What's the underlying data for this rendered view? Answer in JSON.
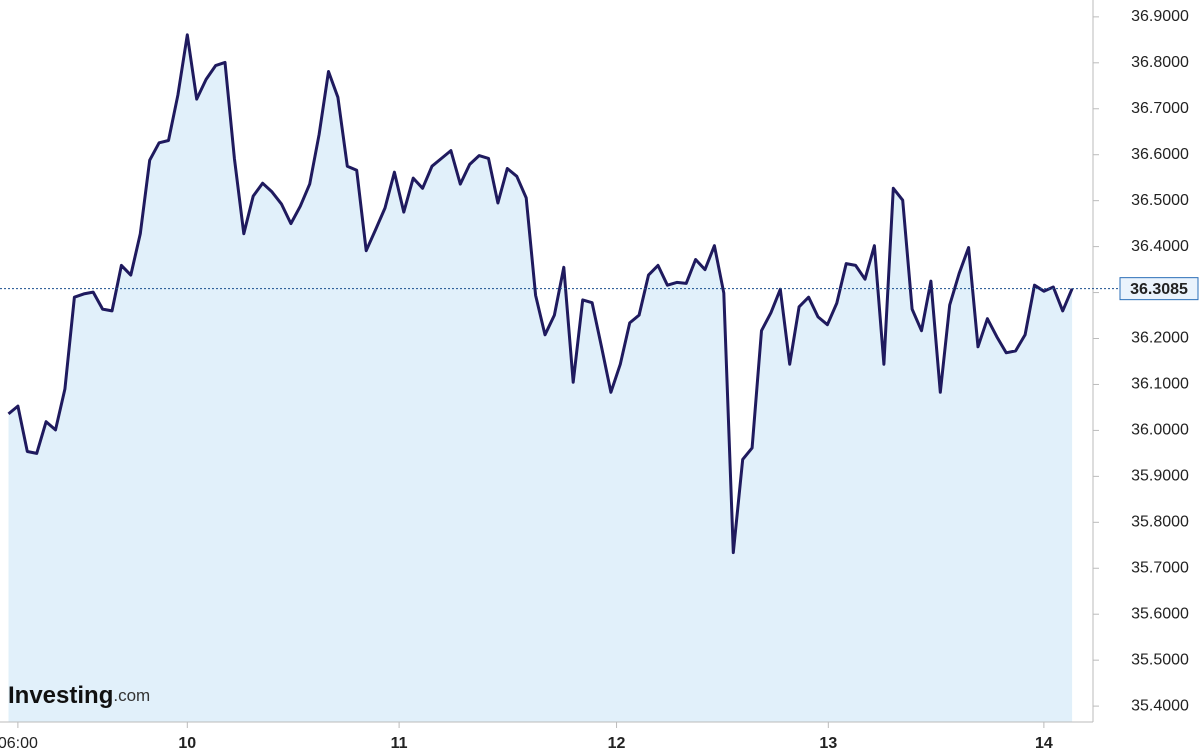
{
  "chart_data": {
    "type": "line",
    "brand": "Investing",
    "brand_suffix": ".com",
    "x": [
      0,
      1,
      2,
      3,
      4,
      5,
      6,
      7,
      8,
      9,
      10,
      11,
      12,
      13,
      14,
      15,
      16,
      17,
      18,
      19,
      20,
      21,
      22,
      23,
      24,
      25,
      26,
      27,
      28,
      29,
      30,
      31,
      32,
      33,
      34,
      35,
      36,
      37,
      38,
      39,
      40,
      41,
      42,
      43,
      44,
      45,
      46,
      47,
      48,
      49,
      50,
      51,
      52,
      53,
      54,
      55,
      56,
      57,
      58,
      59,
      60,
      61,
      62,
      63,
      64,
      65,
      66,
      67,
      68,
      69,
      70,
      71,
      72,
      73,
      74,
      75,
      76,
      77,
      78,
      79,
      80,
      81,
      82,
      83,
      84,
      85,
      86,
      87,
      88,
      89,
      90,
      91,
      92,
      93,
      94,
      95,
      96,
      97,
      98,
      99,
      100,
      101,
      102,
      103,
      104,
      105,
      106,
      107,
      108,
      109,
      110,
      111,
      112,
      113
    ],
    "values": [
      36.036,
      36.053,
      35.954,
      35.95,
      36.019,
      36.001,
      36.09,
      36.29,
      36.297,
      36.301,
      36.264,
      36.26,
      36.359,
      36.338,
      36.428,
      36.588,
      36.626,
      36.631,
      36.73,
      36.861,
      36.721,
      36.764,
      36.794,
      36.801,
      36.592,
      36.428,
      36.51,
      36.538,
      36.519,
      36.493,
      36.45,
      36.488,
      36.536,
      36.644,
      36.781,
      36.725,
      36.575,
      36.566,
      36.391,
      36.437,
      36.484,
      36.562,
      36.475,
      36.549,
      36.527,
      36.575,
      36.592,
      36.609,
      36.536,
      36.579,
      36.598,
      36.592,
      36.495,
      36.57,
      36.553,
      36.506,
      36.294,
      36.208,
      36.251,
      36.355,
      36.105,
      36.284,
      36.278,
      36.182,
      36.083,
      36.144,
      36.234,
      36.251,
      36.338,
      36.359,
      36.316,
      36.322,
      36.32,
      36.372,
      36.35,
      36.402,
      36.299,
      35.734,
      35.937,
      35.962,
      36.217,
      36.256,
      36.307,
      36.144,
      36.269,
      36.29,
      36.247,
      36.23,
      36.277,
      36.363,
      36.359,
      36.329,
      36.402,
      36.144,
      36.527,
      36.501,
      36.264,
      36.217,
      36.325,
      36.083,
      36.273,
      36.342,
      36.398,
      36.182,
      36.243,
      36.204,
      36.169,
      36.173,
      36.208,
      36.316,
      36.303,
      36.312,
      36.26,
      36.3085
    ],
    "color": "#1f1a5e",
    "fill_color": "#e1f0fa",
    "last_value": 36.3085,
    "xlim": [
      -0.9,
      114.9
    ],
    "xticks": [
      {
        "value": 1,
        "label": "06:00"
      },
      19,
      41.5,
      64.6,
      87.1,
      110
    ],
    "xtick_labels": [
      "06:00",
      "10",
      "11",
      "12",
      "13",
      "14"
    ],
    "ylim": [
      35.3654,
      36.9367
    ],
    "yticks": [
      {
        "value": 35.4,
        "label": "35.4000"
      },
      {
        "value": 35.5,
        "label": "35.5000"
      },
      {
        "value": 35.6,
        "label": "35.6000"
      },
      {
        "value": 35.7,
        "label": "35.7000"
      },
      {
        "value": 35.8,
        "label": "35.8000"
      },
      {
        "value": 35.9,
        "label": "35.9000"
      },
      {
        "value": 36.0,
        "label": "36.0000"
      },
      {
        "value": 36.1,
        "label": "36.1000"
      },
      {
        "value": 36.2,
        "label": "36.2000"
      },
      {
        "value": 36.3,
        "label": "36.3000"
      },
      {
        "value": 36.4,
        "label": "36.4000"
      },
      {
        "value": 36.5,
        "label": "36.5000"
      },
      {
        "value": 36.6,
        "label": "36.6000"
      },
      {
        "value": 36.7,
        "label": "36.7000"
      },
      {
        "value": 36.8,
        "label": "36.8000"
      },
      {
        "value": 36.9,
        "label": "36.9000"
      }
    ]
  }
}
